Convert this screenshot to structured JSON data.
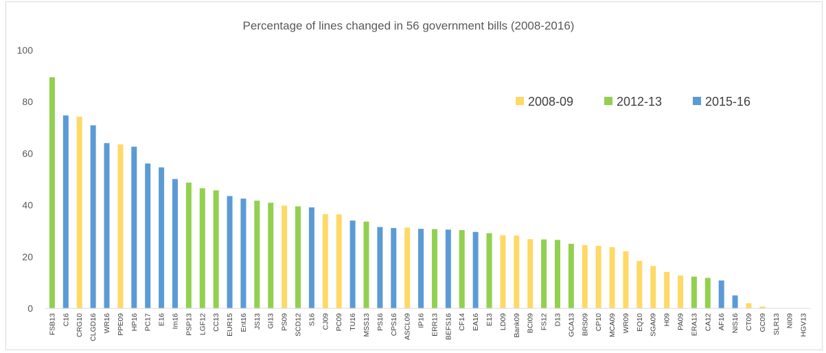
{
  "chart_data": {
    "type": "bar",
    "title": "Percentage of lines changed in 56 government bills (2008-2016)",
    "xlabel": "",
    "ylabel": "",
    "ylim": [
      0,
      100
    ],
    "yticks": [
      0,
      20,
      40,
      60,
      80,
      100
    ],
    "grid": false,
    "legend_position": "top-right",
    "series_colors": {
      "2008-09": "#ffd966",
      "2012-13": "#92d050",
      "2015-16": "#5b9bd5"
    },
    "legend": [
      "2008-09",
      "2012-13",
      "2015-16"
    ],
    "categories": [
      "FSB13",
      "C16",
      "CRG10",
      "CLGD16",
      "WR16",
      "PPE09",
      "HP16",
      "PC17",
      "E16",
      "Im16",
      "PSP13",
      "LGF12",
      "CC13",
      "EUR15",
      "Ent16",
      "JS13",
      "GI13",
      "PS09",
      "SCD12",
      "S16",
      "CJ09",
      "PC09",
      "TU16",
      "MSS13",
      "PS16",
      "CPS16",
      "ASCL09",
      "IP16",
      "ERR13",
      "BEFS16",
      "CF14",
      "EA16",
      "E13",
      "LD09",
      "Bank09",
      "BCI09",
      "FS12",
      "D13",
      "GCA13",
      "BRS09",
      "CP10",
      "MCA09",
      "WR09",
      "EQ10",
      "SGA09",
      "H09",
      "PA09",
      "ERA13",
      "CA12",
      "AF16",
      "NIS16",
      "CT09",
      "GC09",
      "SLR13",
      "NI09",
      "HGV13"
    ],
    "values": [
      89.5,
      74.7,
      74.2,
      70.9,
      64.0,
      63.5,
      62.6,
      56.1,
      54.6,
      50.1,
      48.7,
      46.5,
      45.7,
      43.5,
      42.5,
      41.7,
      40.9,
      39.8,
      39.5,
      39.1,
      36.5,
      36.4,
      34.0,
      33.6,
      31.5,
      31.1,
      31.3,
      30.8,
      30.7,
      30.5,
      30.3,
      29.6,
      29.1,
      28.3,
      28.2,
      26.8,
      26.7,
      26.5,
      25.0,
      24.5,
      24.2,
      23.7,
      22.1,
      18.4,
      16.4,
      14.1,
      12.7,
      12.3,
      11.8,
      10.8,
      5.0,
      2.0,
      0.7,
      0,
      0,
      0
    ],
    "groups": [
      "2012-13",
      "2015-16",
      "2008-09",
      "2015-16",
      "2015-16",
      "2008-09",
      "2015-16",
      "2015-16",
      "2015-16",
      "2015-16",
      "2012-13",
      "2012-13",
      "2012-13",
      "2015-16",
      "2015-16",
      "2012-13",
      "2012-13",
      "2008-09",
      "2012-13",
      "2015-16",
      "2008-09",
      "2008-09",
      "2015-16",
      "2012-13",
      "2015-16",
      "2015-16",
      "2008-09",
      "2015-16",
      "2012-13",
      "2015-16",
      "2012-13",
      "2015-16",
      "2012-13",
      "2008-09",
      "2008-09",
      "2008-09",
      "2012-13",
      "2012-13",
      "2012-13",
      "2008-09",
      "2008-09",
      "2008-09",
      "2008-09",
      "2008-09",
      "2008-09",
      "2008-09",
      "2008-09",
      "2012-13",
      "2012-13",
      "2015-16",
      "2015-16",
      "2008-09",
      "2008-09",
      "2012-13",
      "2008-09",
      "2012-13"
    ]
  }
}
